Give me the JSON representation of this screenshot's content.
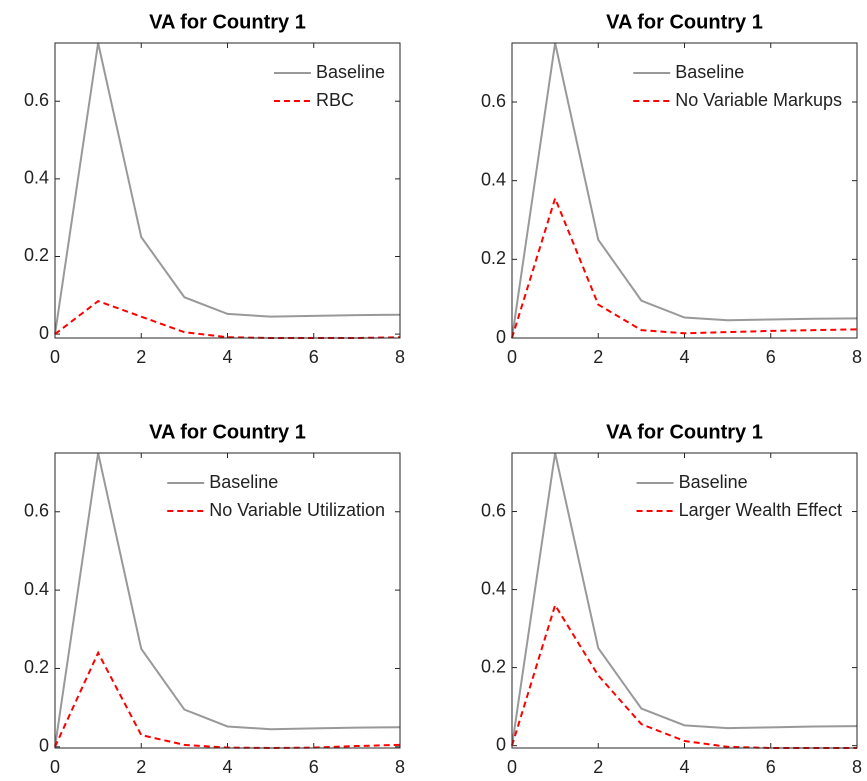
{
  "chart_data": [
    {
      "type": "line",
      "title": "VA for Country 1",
      "x": [
        0,
        1,
        2,
        3,
        4,
        5,
        6,
        7,
        8
      ],
      "series": [
        {
          "name": "Baseline",
          "color": "#999999",
          "values": [
            0,
            0.75,
            0.25,
            0.095,
            0.052,
            0.045,
            0.047,
            0.049,
            0.05
          ]
        },
        {
          "name": "RBC",
          "color": "#ff0000",
          "values": [
            0,
            0.085,
            0.045,
            0.005,
            -0.008,
            -0.01,
            -0.01,
            -0.01,
            -0.008
          ]
        }
      ],
      "xlim": [
        0,
        8
      ],
      "xticks": [
        0,
        2,
        4,
        6,
        8
      ],
      "ylim": [
        -0.01,
        0.75
      ],
      "yticks": [
        0,
        0.2,
        0.4,
        0.6
      ],
      "legend": "upper right"
    },
    {
      "type": "line",
      "title": "VA for Country 1",
      "x": [
        0,
        1,
        2,
        3,
        4,
        5,
        6,
        7,
        8
      ],
      "series": [
        {
          "name": "Baseline",
          "color": "#999999",
          "values": [
            0,
            0.75,
            0.25,
            0.095,
            0.052,
            0.045,
            0.047,
            0.049,
            0.05
          ]
        },
        {
          "name": "No Variable Markups",
          "color": "#ff0000",
          "values": [
            0,
            0.355,
            0.085,
            0.02,
            0.012,
            0.015,
            0.018,
            0.02,
            0.022
          ]
        }
      ],
      "xlim": [
        0,
        8
      ],
      "xticks": [
        0,
        2,
        4,
        6,
        8
      ],
      "ylim": [
        0,
        0.75
      ],
      "yticks": [
        0,
        0.2,
        0.4,
        0.6
      ],
      "legend": "upper right"
    },
    {
      "type": "line",
      "title": "VA for Country 1",
      "x": [
        0,
        1,
        2,
        3,
        4,
        5,
        6,
        7,
        8
      ],
      "series": [
        {
          "name": "Baseline",
          "color": "#999999",
          "values": [
            0,
            0.75,
            0.25,
            0.095,
            0.052,
            0.045,
            0.047,
            0.049,
            0.05
          ]
        },
        {
          "name": "No Variable Utilization",
          "color": "#ff0000",
          "values": [
            0,
            0.24,
            0.03,
            0.005,
            -0.002,
            -0.003,
            -0.002,
            0.002,
            0.005
          ]
        }
      ],
      "xlim": [
        0,
        8
      ],
      "xticks": [
        0,
        2,
        4,
        6,
        8
      ],
      "ylim": [
        -0.003,
        0.75
      ],
      "yticks": [
        0,
        0.2,
        0.4,
        0.6
      ],
      "legend": "upper right"
    },
    {
      "type": "line",
      "title": "VA for Country 1",
      "x": [
        0,
        1,
        2,
        3,
        4,
        5,
        6,
        7,
        8
      ],
      "series": [
        {
          "name": "Baseline",
          "color": "#999999",
          "values": [
            0,
            0.75,
            0.25,
            0.095,
            0.052,
            0.045,
            0.047,
            0.049,
            0.05
          ]
        },
        {
          "name": "Larger Wealth Effect",
          "color": "#ff0000",
          "values": [
            0,
            0.36,
            0.18,
            0.055,
            0.012,
            -0.003,
            -0.006,
            -0.006,
            -0.006
          ]
        }
      ],
      "xlim": [
        0,
        8
      ],
      "xticks": [
        0,
        2,
        4,
        6,
        8
      ],
      "ylim": [
        -0.006,
        0.75
      ],
      "yticks": [
        0,
        0.2,
        0.4,
        0.6
      ],
      "legend": "upper right"
    }
  ]
}
